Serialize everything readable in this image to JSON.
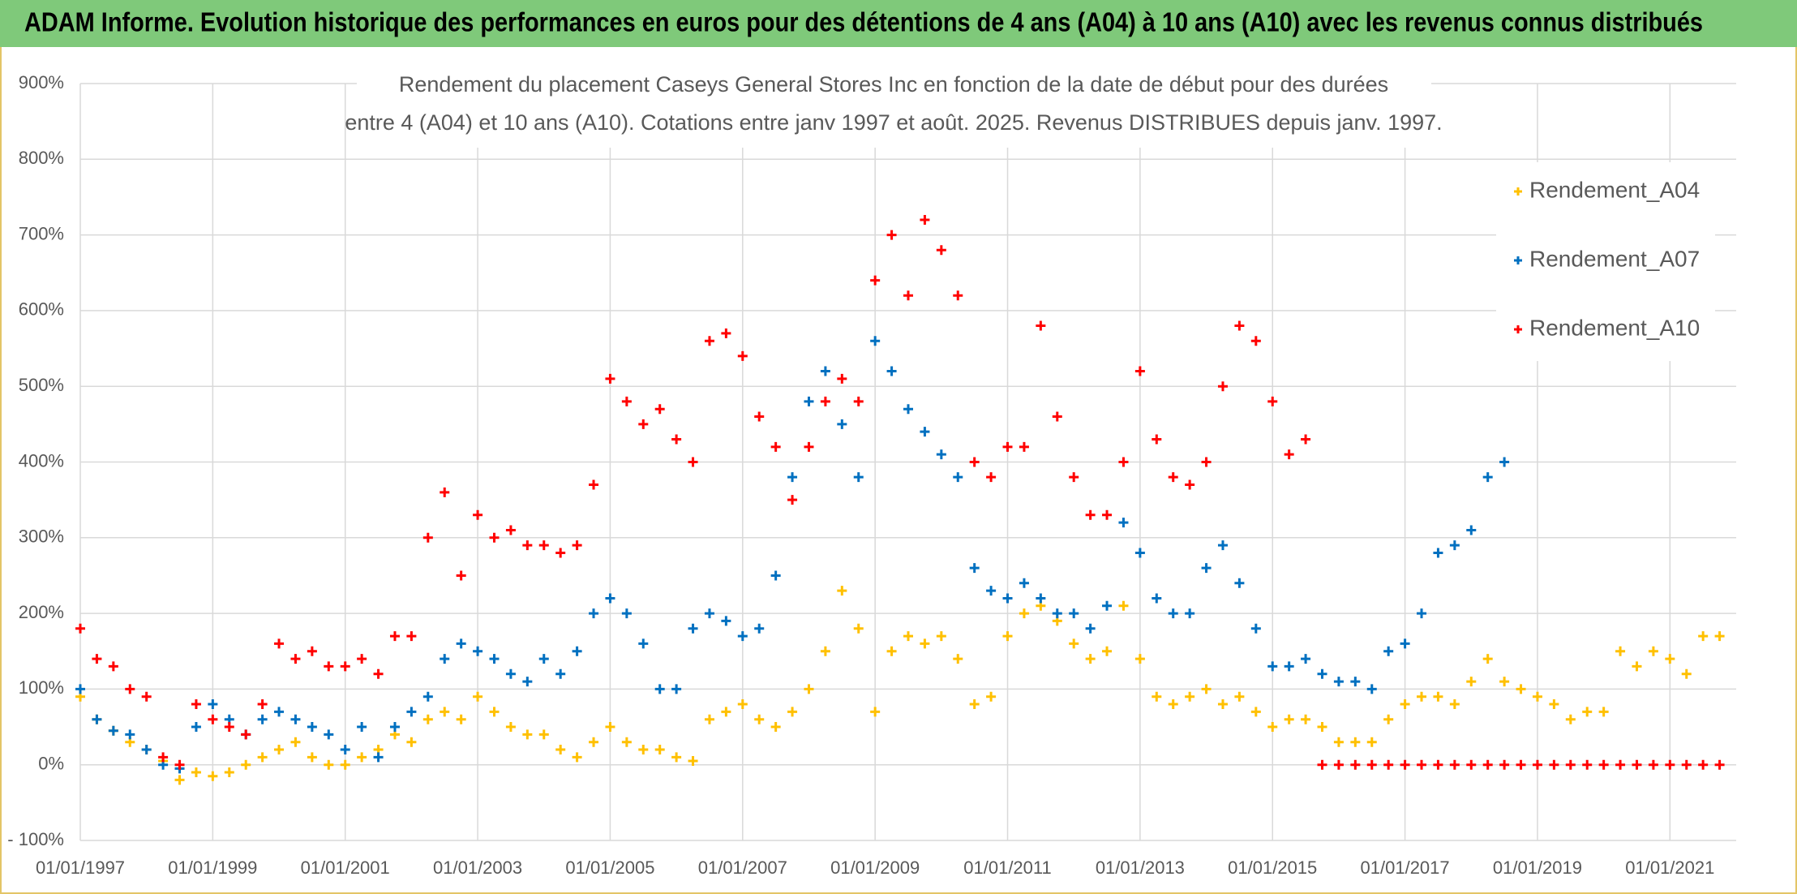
{
  "chart_data": {
    "type": "scatter",
    "header": "ADAM Informe. Evolution historique des performances en euros pour des détentions de 4 ans (A04) à 10 ans (A10) avec les revenus connus distribués",
    "title": "Rendement du placement Caseys General Stores Inc en fonction de la date de début pour des durées",
    "subtitle": "entre 4 (A04) et 10 ans (A10). Cotations entre janv 1997 et août. 2025. Revenus DISTRIBUES depuis janv. 1997.",
    "x": [
      "01/01/1997",
      "01/04/1997",
      "01/07/1997",
      "01/10/1997",
      "01/01/1998",
      "01/04/1998",
      "01/07/1998",
      "01/10/1998",
      "01/01/1999",
      "01/04/1999",
      "01/07/1999",
      "01/10/1999",
      "01/01/2000",
      "01/04/2000",
      "01/07/2000",
      "01/10/2000",
      "01/01/2001",
      "01/04/2001",
      "01/07/2001",
      "01/10/2001",
      "01/01/2002",
      "01/04/2002",
      "01/07/2002",
      "01/10/2002",
      "01/01/2003",
      "01/04/2003",
      "01/07/2003",
      "01/10/2003",
      "01/01/2004",
      "01/04/2004",
      "01/07/2004",
      "01/10/2004",
      "01/01/2005",
      "01/04/2005",
      "01/07/2005",
      "01/10/2005",
      "01/01/2006",
      "01/04/2006",
      "01/07/2006",
      "01/10/2006",
      "01/01/2007",
      "01/04/2007",
      "01/07/2007",
      "01/10/2007",
      "01/01/2008",
      "01/04/2008",
      "01/07/2008",
      "01/10/2008",
      "01/01/2009",
      "01/04/2009",
      "01/07/2009",
      "01/10/2009",
      "01/01/2010",
      "01/04/2010",
      "01/07/2010",
      "01/10/2010",
      "01/01/2011",
      "01/04/2011",
      "01/07/2011",
      "01/10/2011",
      "01/01/2012",
      "01/04/2012",
      "01/07/2012",
      "01/10/2012",
      "01/01/2013",
      "01/04/2013",
      "01/07/2013",
      "01/10/2013",
      "01/01/2014",
      "01/04/2014",
      "01/07/2014",
      "01/10/2014",
      "01/01/2015",
      "01/04/2015",
      "01/07/2015",
      "01/10/2015",
      "01/01/2016",
      "01/04/2016",
      "01/07/2016",
      "01/10/2016",
      "01/01/2017",
      "01/04/2017",
      "01/07/2017",
      "01/10/2017",
      "01/01/2018",
      "01/04/2018",
      "01/07/2018",
      "01/10/2018",
      "01/01/2019",
      "01/04/2019",
      "01/07/2019",
      "01/10/2019",
      "01/01/2020",
      "01/04/2020",
      "01/07/2020",
      "01/10/2020",
      "01/01/2021",
      "01/04/2021",
      "01/07/2021",
      "01/10/2021"
    ],
    "series": [
      {
        "name": "Rendement_A04",
        "color": "#ffc000",
        "values": [
          90,
          60,
          45,
          30,
          20,
          5,
          -20,
          -10,
          -15,
          -10,
          0,
          10,
          20,
          30,
          10,
          0,
          0,
          10,
          20,
          40,
          30,
          60,
          70,
          60,
          90,
          70,
          50,
          40,
          40,
          20,
          10,
          30,
          50,
          30,
          20,
          20,
          10,
          5,
          60,
          70,
          80,
          60,
          50,
          70,
          100,
          150,
          230,
          180,
          70,
          150,
          170,
          160,
          170,
          140,
          80,
          90,
          170,
          200,
          210,
          190,
          160,
          140,
          150,
          210,
          140,
          90,
          80,
          90,
          100,
          80,
          90,
          70,
          50,
          60,
          60,
          50,
          30,
          30,
          30,
          60,
          80,
          90,
          90,
          80,
          110,
          140,
          110,
          100,
          90,
          80,
          60,
          70,
          70,
          150,
          130,
          150,
          140,
          120,
          170,
          170
        ]
      },
      {
        "name": "Rendement_A07",
        "color": "#0070c0",
        "values": [
          100,
          60,
          45,
          40,
          20,
          0,
          -5,
          50,
          80,
          60,
          40,
          60,
          70,
          60,
          50,
          40,
          20,
          50,
          10,
          50,
          70,
          90,
          140,
          160,
          150,
          140,
          120,
          110,
          140,
          120,
          150,
          200,
          220,
          200,
          160,
          100,
          100,
          180,
          200,
          190,
          170,
          180,
          250,
          380,
          480,
          520,
          450,
          380,
          560,
          520,
          470,
          440,
          410,
          380,
          260,
          230,
          220,
          240,
          220,
          200,
          200,
          180,
          210,
          320,
          280,
          220,
          200,
          200,
          260,
          290,
          240,
          180,
          130,
          130,
          140,
          120,
          110,
          110,
          100,
          150,
          160,
          200,
          280,
          290,
          310,
          380,
          400,
          null,
          null,
          null,
          null,
          null,
          null,
          null,
          null,
          null,
          null,
          null,
          null,
          null
        ]
      },
      {
        "name": "Rendement_A10",
        "color": "#ff0000",
        "values": [
          180,
          140,
          130,
          100,
          90,
          10,
          0,
          80,
          60,
          50,
          40,
          80,
          160,
          140,
          150,
          130,
          130,
          140,
          120,
          170,
          170,
          300,
          360,
          250,
          330,
          300,
          310,
          290,
          290,
          280,
          290,
          370,
          510,
          480,
          450,
          470,
          430,
          400,
          560,
          570,
          540,
          460,
          420,
          350,
          420,
          480,
          510,
          480,
          640,
          700,
          620,
          720,
          680,
          620,
          400,
          380,
          420,
          420,
          580,
          460,
          380,
          330,
          330,
          400,
          520,
          430,
          380,
          370,
          400,
          500,
          580,
          560,
          480,
          410,
          430,
          0,
          0,
          0,
          0,
          0,
          0,
          0,
          0,
          0,
          0,
          0,
          0,
          0,
          0,
          0,
          0,
          0,
          0,
          0,
          0,
          0,
          0,
          0,
          0,
          0
        ]
      }
    ],
    "xlim": [
      "01/01/1997",
      "01/01/2022"
    ],
    "xticks": [
      "01/01/1997",
      "01/01/1999",
      "01/01/2001",
      "01/01/2003",
      "01/01/2005",
      "01/01/2007",
      "01/01/2009",
      "01/01/2011",
      "01/01/2013",
      "01/01/2015",
      "01/01/2017",
      "01/01/2019",
      "01/01/2021"
    ],
    "ylim": [
      -100,
      900
    ],
    "yticks": [
      {
        "value": -100,
        "label": "- 100%"
      },
      {
        "value": 0,
        "label": "0%"
      },
      {
        "value": 100,
        "label": "100%"
      },
      {
        "value": 200,
        "label": "200%"
      },
      {
        "value": 300,
        "label": "300%"
      },
      {
        "value": 400,
        "label": "400%"
      },
      {
        "value": 500,
        "label": "500%"
      },
      {
        "value": 600,
        "label": "600%"
      },
      {
        "value": 700,
        "label": "700%"
      },
      {
        "value": 800,
        "label": "800%"
      },
      {
        "value": 900,
        "label": "900%"
      }
    ],
    "grid": true,
    "legend": "top-right"
  }
}
